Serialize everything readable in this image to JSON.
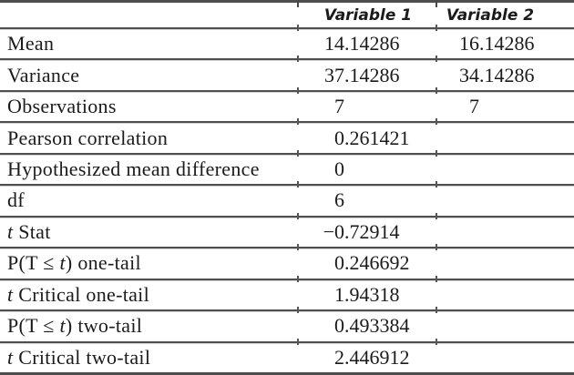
{
  "colors": {
    "rule_color": "#4e4e4e",
    "text_color": "#1b1b1b",
    "background": "#ffffff"
  },
  "table": {
    "columns": [
      "",
      "Variable 1",
      "Variable 2"
    ],
    "rows": [
      {
        "label_parts": [
          {
            "text": "Mean"
          }
        ],
        "v1": "14.14286",
        "v2": "16.14286"
      },
      {
        "label_parts": [
          {
            "text": "Variance"
          }
        ],
        "v1": "37.14286",
        "v2": "34.14286"
      },
      {
        "label_parts": [
          {
            "text": "Observations"
          }
        ],
        "v1": "7",
        "v2": "7"
      },
      {
        "label_parts": [
          {
            "text": "Pearson correlation"
          }
        ],
        "v1": "0.261421",
        "v2": ""
      },
      {
        "label_parts": [
          {
            "text": "Hypothesized mean difference"
          }
        ],
        "v1": "0",
        "v2": ""
      },
      {
        "label_parts": [
          {
            "text": "df"
          }
        ],
        "v1": "6",
        "v2": ""
      },
      {
        "label_parts": [
          {
            "text": "t",
            "italic": true
          },
          {
            "text": " Stat"
          }
        ],
        "v1": "−0.72914",
        "v2": ""
      },
      {
        "label_parts": [
          {
            "text": "P(T ≤ "
          },
          {
            "text": "t",
            "italic": true
          },
          {
            "text": ") one-tail"
          }
        ],
        "v1": "0.246692",
        "v2": ""
      },
      {
        "label_parts": [
          {
            "text": "t",
            "italic": true
          },
          {
            "text": " Critical one-tail"
          }
        ],
        "v1": "1.94318",
        "v2": ""
      },
      {
        "label_parts": [
          {
            "text": "P(T ≤ "
          },
          {
            "text": "t",
            "italic": true
          },
          {
            "text": ") two-tail"
          }
        ],
        "v1": "0.493384",
        "v2": ""
      },
      {
        "label_parts": [
          {
            "text": "t",
            "italic": true
          },
          {
            "text": " Critical two-tail"
          }
        ],
        "v1": "2.446912",
        "v2": ""
      }
    ]
  },
  "chart_data": {
    "type": "table",
    "title": "",
    "columns": [
      "",
      "Variable 1",
      "Variable 2"
    ],
    "rows": [
      [
        "Mean",
        "14.14286",
        "16.14286"
      ],
      [
        "Variance",
        "37.14286",
        "34.14286"
      ],
      [
        "Observations",
        "7",
        "7"
      ],
      [
        "Pearson correlation",
        "0.261421",
        ""
      ],
      [
        "Hypothesized mean difference",
        "0",
        ""
      ],
      [
        "df",
        "6",
        ""
      ],
      [
        "t Stat",
        "−0.72914",
        ""
      ],
      [
        "P(T ≤ t) one-tail",
        "0.246692",
        ""
      ],
      [
        "t Critical one-tail",
        "1.94318",
        ""
      ],
      [
        "P(T ≤ t) two-tail",
        "0.493384",
        ""
      ],
      [
        "t Critical two-tail",
        "2.446912",
        ""
      ]
    ]
  }
}
